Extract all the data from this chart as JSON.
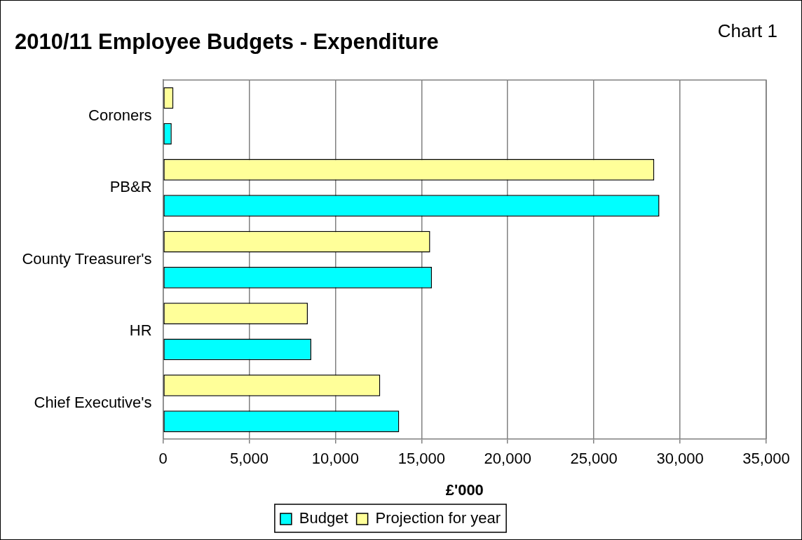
{
  "chart_data": {
    "type": "bar",
    "orientation": "horizontal",
    "title": "2010/11 Employee Budgets - Expenditure",
    "xlabel": "£'000",
    "annotations": [
      "Chart 1"
    ],
    "categories": [
      "Coroners",
      "PB&R",
      "County Treasurer's",
      "HR",
      "Chief Executive's"
    ],
    "series": [
      {
        "name": "Projection for year",
        "color": "#ffff99",
        "values": [
          600,
          28500,
          15500,
          8400,
          12600
        ]
      },
      {
        "name": "Budget",
        "color": "#00ffff",
        "values": [
          500,
          28800,
          15600,
          8600,
          13700
        ]
      }
    ],
    "xlim": [
      0,
      35000
    ],
    "xticks": [
      0,
      {
        "value": 5000,
        "label": "5,000"
      },
      {
        "value": 10000,
        "label": "10,000"
      },
      {
        "value": 15000,
        "label": "15,000"
      },
      {
        "value": 20000,
        "label": "20,000"
      },
      {
        "value": 25000,
        "label": "25,000"
      },
      {
        "value": 30000,
        "label": "30,000"
      },
      {
        "value": 35000,
        "label": "35,000"
      }
    ],
    "grid": "x",
    "legend": "bottom"
  }
}
